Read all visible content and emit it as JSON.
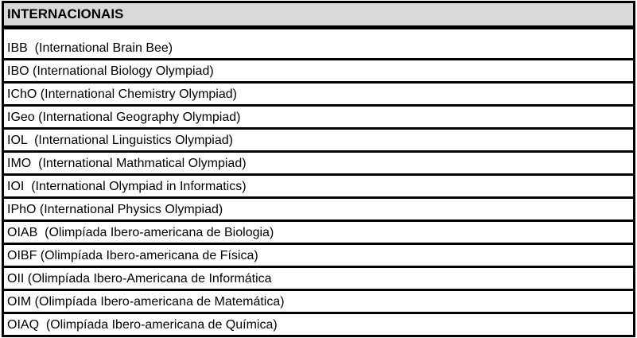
{
  "table": {
    "title": "INTERNACIONAIS",
    "rows": [
      "IBB  (International Brain Bee)",
      "IBO (International Biology Olympiad)",
      "IChO (International Chemistry Olympiad)",
      "IGeo (International Geography Olympiad)",
      "IOL  (International Linguistics Olympiad)",
      "IMO  (International Mathmatical Olympiad)",
      "IOI  (International Olympiad in Informatics)",
      "IPhO (International Physics Olympiad)",
      "OIAB  (Olimpíada Ibero-americana de Biologia)",
      "OIBF (Olimpíada Ibero-americana de Física)",
      "OII (Olimpíada Ibero-Americana de Informática",
      "OIM (Olimpíada Ibero-americana de Matemática)",
      "OIAQ  (Olimpíada Ibero-americana de Química)"
    ]
  }
}
